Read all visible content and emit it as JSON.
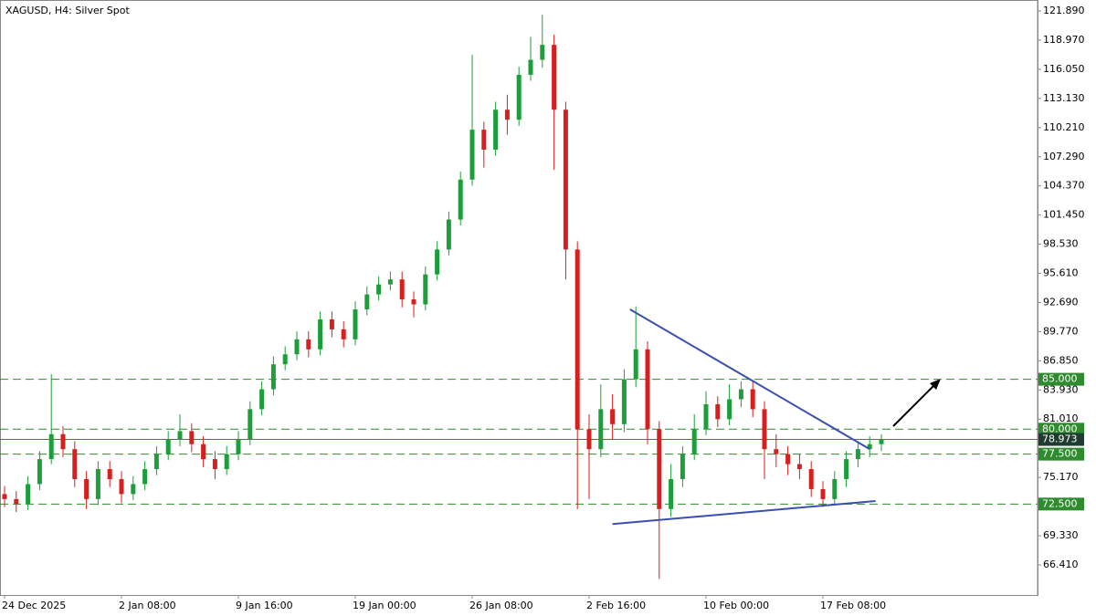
{
  "chart_data": {
    "type": "candlestick",
    "title": "XAGUSD, H4:  Silver Spot",
    "categories": [
      "24 Dec 2025",
      null,
      null,
      null,
      null,
      null,
      null,
      null,
      null,
      null,
      "2 Jan 08:00",
      null,
      null,
      null,
      null,
      null,
      null,
      null,
      null,
      null,
      "9 Jan 16:00",
      null,
      null,
      null,
      null,
      null,
      null,
      null,
      null,
      null,
      "19 Jan 00:00",
      null,
      null,
      null,
      null,
      null,
      null,
      null,
      null,
      null,
      "26 Jan 08:00",
      null,
      null,
      null,
      null,
      null,
      null,
      null,
      null,
      null,
      "2 Feb 16:00",
      null,
      null,
      null,
      null,
      null,
      null,
      null,
      null,
      null,
      "10 Feb 00:00",
      null,
      null,
      null,
      null,
      null,
      null,
      null,
      null,
      null,
      "17 Feb 08:00",
      null,
      null,
      null,
      null,
      null
    ],
    "open": [
      73.5,
      73,
      72.5,
      74.5,
      77,
      79.5,
      78,
      75,
      73,
      76,
      75,
      73.5,
      74.5,
      76,
      77.5,
      79,
      79.8,
      78.5,
      77,
      76,
      77.5,
      79,
      82,
      84,
      86.5,
      87.5,
      89,
      88,
      91,
      90,
      89,
      92,
      93.5,
      94.5,
      95,
      93,
      92.5,
      95.5,
      98,
      101,
      105,
      110,
      108,
      112,
      111,
      115.5,
      117,
      118.5,
      112,
      98,
      80,
      78,
      82,
      80.5,
      85,
      88,
      80,
      72,
      75,
      77.5,
      80,
      82.5,
      81,
      83,
      84,
      82,
      78,
      77.5,
      76.5,
      76,
      74,
      73,
      75,
      77,
      78,
      78.5
    ],
    "high": [
      74.3,
      73.8,
      75.3,
      77.8,
      85.5,
      80.3,
      78.8,
      75.8,
      76.8,
      76.8,
      75.8,
      75.3,
      76.8,
      78.3,
      79.8,
      81.5,
      80.6,
      79.3,
      77.8,
      78.3,
      79.8,
      82.8,
      84.8,
      87.3,
      88.3,
      89.8,
      89.8,
      91.8,
      91.8,
      90.8,
      92.8,
      94.3,
      95.3,
      95.8,
      95.8,
      93.8,
      96.3,
      98.8,
      101.8,
      105.8,
      117.5,
      110.8,
      112.8,
      113.5,
      116.3,
      119.3,
      121.5,
      119.5,
      112.8,
      98.8,
      81.5,
      84.5,
      83.5,
      86,
      92.3,
      88.8,
      80.8,
      76.5,
      78.3,
      81.5,
      83.8,
      83.3,
      84.5,
      84.8,
      84.8,
      82.8,
      79.5,
      78.3,
      77.5,
      76.8,
      74.8,
      75.8,
      77.8,
      78.8,
      79.3,
      79.5
    ],
    "low": [
      72.2,
      71.7,
      71.9,
      73.9,
      76.5,
      77.2,
      74.2,
      72,
      72.4,
      74.2,
      72.6,
      72.9,
      73.9,
      75.4,
      76.9,
      78.3,
      77.7,
      76.2,
      75,
      75.4,
      76.9,
      78.4,
      81.4,
      83.4,
      85.9,
      86.9,
      87.2,
      87.4,
      89.2,
      88.2,
      88.4,
      91.4,
      92.9,
      93.9,
      92.2,
      91.2,
      91.9,
      94.9,
      97.4,
      100.4,
      104.4,
      106.2,
      107.4,
      109.5,
      110.4,
      114.9,
      116.2,
      106,
      95,
      72,
      73,
      77.2,
      79,
      79.7,
      84.2,
      78.5,
      65,
      71.2,
      74.2,
      76.9,
      79.4,
      80.2,
      80.4,
      82.2,
      81.2,
      75,
      76.2,
      75.4,
      75,
      73.2,
      72.2,
      72.5,
      74.2,
      76.2,
      77.2,
      77.8
    ],
    "close": [
      73,
      72.5,
      74.5,
      77,
      79.5,
      78,
      75,
      73,
      76,
      75,
      73.5,
      74.5,
      76,
      77.5,
      79,
      79.8,
      78.5,
      77,
      76,
      77.5,
      79,
      82,
      84,
      86.5,
      87.5,
      89,
      88,
      91,
      90,
      89,
      92,
      93.5,
      94.5,
      95,
      93,
      92.5,
      95.5,
      98,
      101,
      105,
      110,
      108,
      112,
      111,
      115.5,
      117,
      118.5,
      112,
      98,
      80,
      78,
      82,
      80.5,
      85,
      88,
      80,
      72,
      75,
      77.5,
      80,
      82.5,
      81,
      83,
      84,
      82,
      78,
      77.5,
      76.5,
      76,
      74,
      73,
      75,
      77,
      78,
      78.5,
      78.973
    ],
    "up_color": "#1e9e3a",
    "down_color": "#d62020",
    "ylim": [
      63.39,
      122.99
    ],
    "yticks": [
      {
        "value": 121.89,
        "label": "121.890"
      },
      {
        "value": 118.97,
        "label": "118.970"
      },
      {
        "value": 116.05,
        "label": "116.050"
      },
      {
        "value": 113.13,
        "label": "113.130"
      },
      {
        "value": 110.21,
        "label": "110.210"
      },
      {
        "value": 107.29,
        "label": "107.290"
      },
      {
        "value": 104.37,
        "label": "104.370"
      },
      {
        "value": 101.45,
        "label": "101.450"
      },
      {
        "value": 98.53,
        "label": "98.530"
      },
      {
        "value": 95.61,
        "label": "95.610"
      },
      {
        "value": 92.69,
        "label": "92.690"
      },
      {
        "value": 89.77,
        "label": "89.770"
      },
      {
        "value": 86.85,
        "label": "86.850"
      },
      {
        "value": 83.93,
        "label": "83.930"
      },
      {
        "value": 81.01,
        "label": "81.010"
      },
      {
        "value": 75.17,
        "label": "75.170"
      },
      {
        "value": 69.33,
        "label": "69.330"
      },
      {
        "value": 66.41,
        "label": "66.410"
      }
    ],
    "levels": [
      {
        "value": 85,
        "label": "85.000"
      },
      {
        "value": 80,
        "label": "80.000"
      },
      {
        "value": 77.5,
        "label": "77.500"
      },
      {
        "value": 72.5,
        "label": "72.500"
      }
    ],
    "level_color": "#2e8b2e",
    "price": {
      "value": 78.973,
      "label": "78.973"
    },
    "price_color": "#1e3d2e",
    "trendlines": [
      {
        "x": [
          53.5,
          74
        ],
        "y": [
          92,
          78
        ]
      },
      {
        "x": [
          52,
          74.5
        ],
        "y": [
          70.5,
          72.8
        ]
      }
    ],
    "trend_color": "#3a4fb0"
  }
}
